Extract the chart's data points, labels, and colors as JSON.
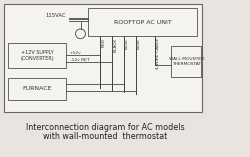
{
  "bg_color": "#e8e5e0",
  "outer_bg": "#f5f3ef",
  "box_edge_color": "#666666",
  "line_color": "#444444",
  "text_color": "#333333",
  "title_text1": "Interconnection diagram for AC models",
  "title_text2": "with wall-mounted  thermostat",
  "rooftop_label": "ROOFTOP AC UNIT",
  "converter_label": "+12V SUPPLY\n(CONVERTER)",
  "furnace_label": "FURNACE",
  "thermostat_label": "WALL MOUNTED\nTHERMOSTAT",
  "wire_labels": [
    "RED",
    "BLACK",
    "BLUE",
    "BLUE",
    "4-WIRE CABLE"
  ],
  "plus12_label": "+12v",
  "minus12_label": "-12v RET",
  "volts_label": "115VAC",
  "font_size_box": 4.5,
  "font_size_small": 3.8,
  "font_size_wire": 3.2,
  "font_size_title": 5.8
}
